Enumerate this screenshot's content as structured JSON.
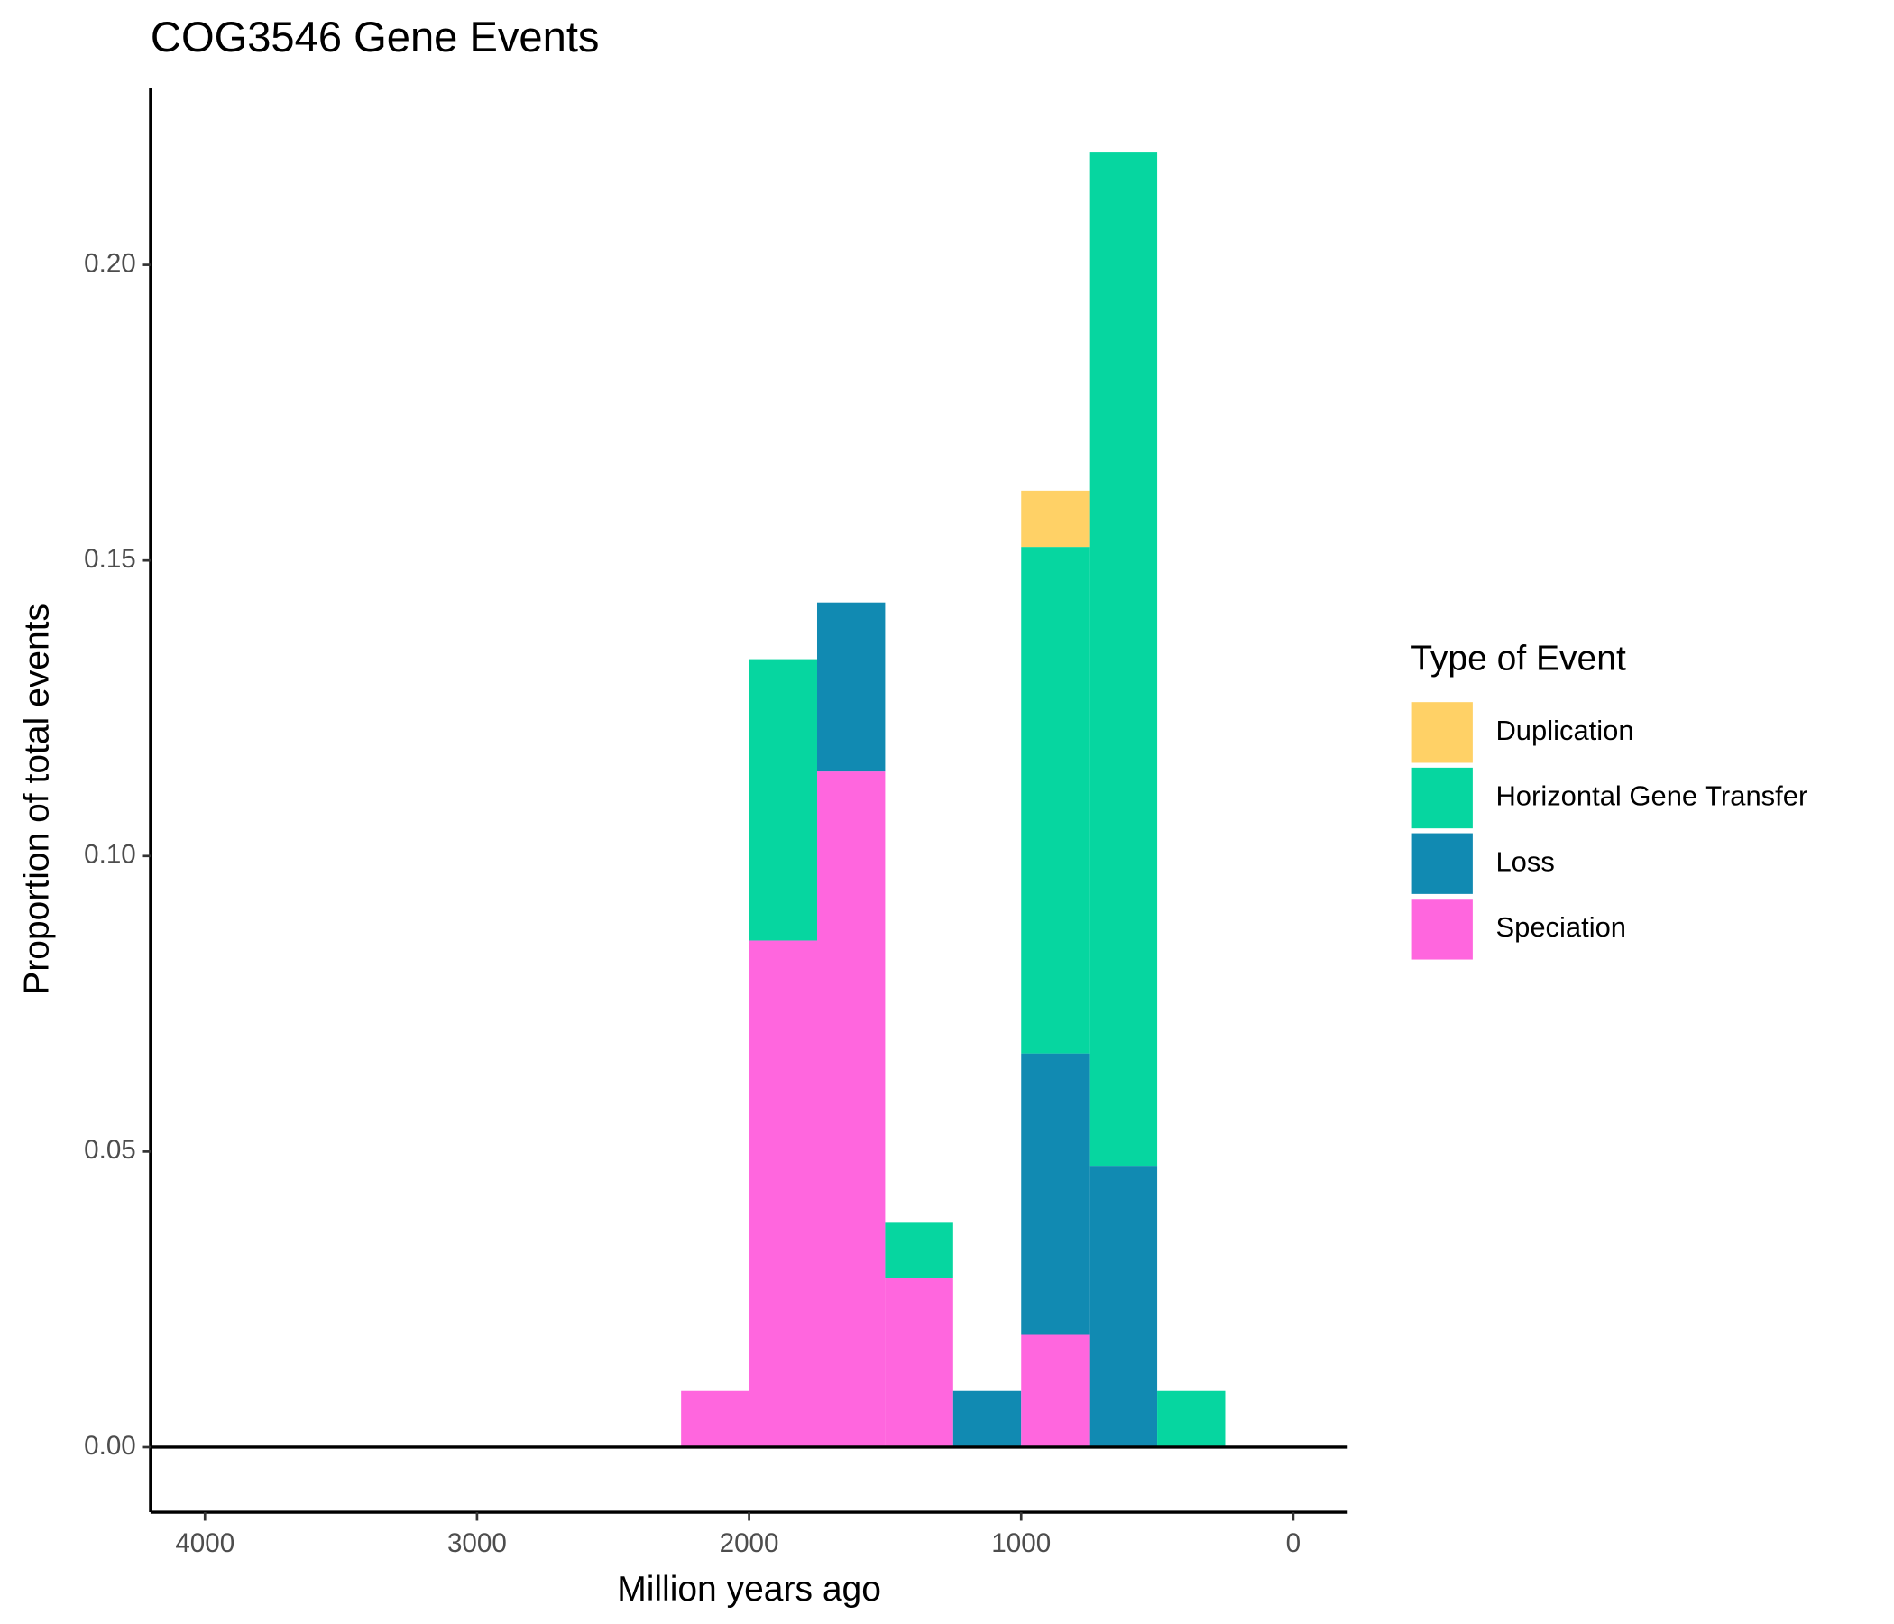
{
  "chart_data": {
    "type": "histogram",
    "title": "COG3546 Gene Events",
    "x_label": "Million years ago",
    "y_label": "Proportion of total events",
    "bins": [
      2250,
      2000,
      1750,
      1500,
      1250,
      1000,
      750,
      500,
      250
    ],
    "stacked": true,
    "series": [
      {
        "name": "Duplication",
        "color": "#FFD166",
        "values": [
          0,
          0,
          0,
          0,
          0,
          0.0095,
          0,
          0
        ]
      },
      {
        "name": "Horizontal Gene Transfer",
        "color": "#06D6A0",
        "values": [
          0,
          0.0476,
          0,
          0.0095,
          0,
          0.0857,
          0.1714,
          0.0095
        ]
      },
      {
        "name": "Loss",
        "color": "#118AB2",
        "values": [
          0,
          0,
          0.0286,
          0,
          0.0095,
          0.0476,
          0.0476,
          0
        ]
      },
      {
        "name": "Speciation",
        "color": "#FF66DE",
        "values": [
          0.0095,
          0.0857,
          0.1143,
          0.0286,
          0,
          0.019,
          0,
          0
        ]
      }
    ],
    "xlim": [
      4200,
      -200
    ],
    "xticks": [
      4000,
      3000,
      2000,
      1000,
      0
    ],
    "ylim": [
      -0.011,
      0.23
    ],
    "yticks": [
      {
        "value": 0,
        "label": "0.00"
      },
      {
        "value": 0.05,
        "label": "0.05"
      },
      {
        "value": 0.1,
        "label": "0.10"
      },
      {
        "value": 0.15,
        "label": "0.15"
      },
      {
        "value": 0.2,
        "label": "0.20"
      }
    ],
    "hline": 0,
    "legend_title": "Type of Event",
    "legend_position": "right",
    "grid": false
  }
}
